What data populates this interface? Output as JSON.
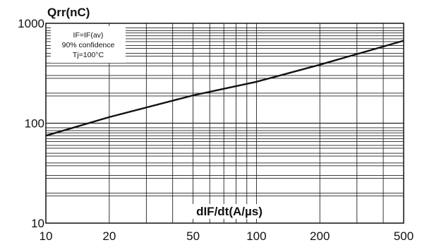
{
  "chart_data": {
    "type": "line",
    "ylabel": "Qrr(nC)",
    "xlabel": "dIF/dt(A/µs)",
    "x_scale": "log",
    "y_scale": "log",
    "xlim": [
      10,
      500
    ],
    "ylim": [
      10,
      1000
    ],
    "grid": true,
    "x_ticks": [
      {
        "value": 10,
        "label": "10"
      },
      {
        "value": 20,
        "label": "20"
      },
      {
        "value": 50,
        "label": "50"
      },
      {
        "value": 100,
        "label": "100"
      },
      {
        "value": 200,
        "label": "200"
      },
      {
        "value": 500,
        "label": "500"
      }
    ],
    "y_ticks": [
      {
        "value": 10,
        "label": "10"
      },
      {
        "value": 100,
        "label": "100"
      },
      {
        "value": 1000,
        "label": "1000"
      }
    ],
    "annotation": {
      "lines": [
        "IF=IF(av)",
        "90% confidence",
        "Tj=100°C"
      ]
    },
    "series": [
      {
        "x": [
          10,
          20,
          50,
          100,
          200,
          500
        ],
        "y": [
          75,
          115,
          190,
          260,
          385,
          670
        ]
      }
    ]
  }
}
